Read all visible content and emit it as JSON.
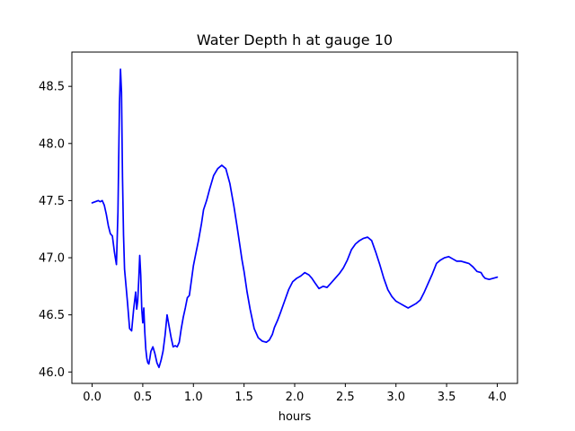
{
  "chart_data": {
    "type": "line",
    "title": "Water Depth h at gauge 10",
    "xlabel": "hours",
    "ylabel": "",
    "xlim": [
      -0.2,
      4.2
    ],
    "ylim": [
      45.9,
      48.8
    ],
    "xticks": [
      0.0,
      0.5,
      1.0,
      1.5,
      2.0,
      2.5,
      3.0,
      3.5,
      4.0
    ],
    "xtick_labels": [
      "0.0",
      "0.5",
      "1.0",
      "1.5",
      "2.0",
      "2.5",
      "3.0",
      "3.5",
      "4.0"
    ],
    "yticks": [
      46.0,
      46.5,
      47.0,
      47.5,
      48.0,
      48.5
    ],
    "ytick_labels": [
      "46.0",
      "46.5",
      "47.0",
      "47.5",
      "48.0",
      "48.5"
    ],
    "grid": false,
    "series": [
      {
        "name": "",
        "color": "#0000ff",
        "x": [
          0.0,
          0.03,
          0.06,
          0.08,
          0.1,
          0.12,
          0.14,
          0.16,
          0.18,
          0.2,
          0.22,
          0.24,
          0.255,
          0.27,
          0.28,
          0.29,
          0.3,
          0.31,
          0.32,
          0.335,
          0.35,
          0.37,
          0.39,
          0.41,
          0.43,
          0.44,
          0.45,
          0.46,
          0.47,
          0.48,
          0.49,
          0.5,
          0.51,
          0.52,
          0.53,
          0.54,
          0.55,
          0.56,
          0.57,
          0.58,
          0.6,
          0.62,
          0.64,
          0.66,
          0.68,
          0.7,
          0.72,
          0.74,
          0.76,
          0.78,
          0.8,
          0.82,
          0.84,
          0.86,
          0.88,
          0.9,
          0.92,
          0.94,
          0.96,
          0.98,
          1.0,
          1.02,
          1.05,
          1.08,
          1.1,
          1.13,
          1.16,
          1.2,
          1.24,
          1.28,
          1.32,
          1.36,
          1.4,
          1.43,
          1.46,
          1.48,
          1.5,
          1.53,
          1.56,
          1.6,
          1.64,
          1.68,
          1.72,
          1.75,
          1.78,
          1.8,
          1.83,
          1.86,
          1.9,
          1.94,
          1.98,
          2.02,
          2.06,
          2.1,
          2.14,
          2.17,
          2.2,
          2.24,
          2.28,
          2.32,
          2.36,
          2.4,
          2.44,
          2.48,
          2.52,
          2.56,
          2.6,
          2.64,
          2.68,
          2.72,
          2.76,
          2.8,
          2.84,
          2.88,
          2.92,
          2.96,
          3.0,
          3.04,
          3.08,
          3.12,
          3.16,
          3.2,
          3.24,
          3.28,
          3.32,
          3.36,
          3.4,
          3.44,
          3.48,
          3.52,
          3.56,
          3.6,
          3.64,
          3.68,
          3.72,
          3.76,
          3.8,
          3.84,
          3.86,
          3.88,
          3.92,
          3.96,
          4.0
        ],
        "y": [
          47.48,
          47.49,
          47.5,
          47.49,
          47.5,
          47.46,
          47.38,
          47.28,
          47.21,
          47.19,
          47.05,
          46.94,
          47.4,
          48.35,
          48.65,
          48.45,
          47.7,
          47.2,
          46.9,
          46.75,
          46.6,
          46.38,
          46.36,
          46.55,
          46.7,
          46.55,
          46.62,
          46.8,
          47.02,
          46.85,
          46.55,
          46.43,
          46.56,
          46.35,
          46.2,
          46.12,
          46.08,
          46.07,
          46.12,
          46.18,
          46.22,
          46.16,
          46.08,
          46.04,
          46.1,
          46.18,
          46.32,
          46.5,
          46.4,
          46.3,
          46.22,
          46.23,
          46.22,
          46.26,
          46.38,
          46.48,
          46.56,
          46.65,
          46.67,
          46.8,
          46.93,
          47.02,
          47.15,
          47.3,
          47.42,
          47.5,
          47.6,
          47.72,
          47.78,
          47.81,
          47.78,
          47.65,
          47.45,
          47.28,
          47.1,
          46.98,
          46.88,
          46.7,
          46.55,
          46.38,
          46.3,
          46.27,
          46.26,
          46.28,
          46.33,
          46.39,
          46.45,
          46.52,
          46.62,
          46.72,
          46.79,
          46.82,
          46.84,
          46.87,
          46.85,
          46.82,
          46.78,
          46.73,
          46.75,
          46.74,
          46.78,
          46.82,
          46.86,
          46.91,
          46.98,
          47.07,
          47.12,
          47.15,
          47.17,
          47.18,
          47.15,
          47.05,
          46.94,
          46.82,
          46.72,
          46.66,
          46.62,
          46.6,
          46.58,
          46.56,
          46.58,
          46.6,
          46.63,
          46.7,
          46.78,
          46.86,
          46.95,
          46.98,
          47.0,
          47.01,
          46.99,
          46.97,
          46.97,
          46.96,
          46.95,
          46.92,
          46.88,
          46.87,
          46.84,
          46.82,
          46.81,
          46.82,
          46.83
        ]
      }
    ]
  }
}
